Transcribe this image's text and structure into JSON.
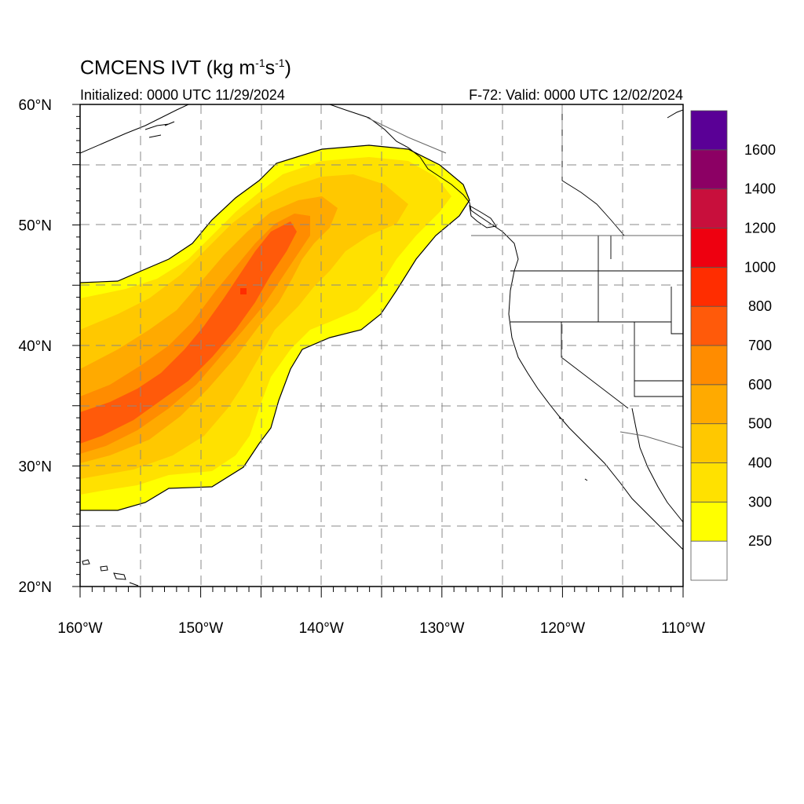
{
  "title": {
    "main": "CMCENS IVT (kg m",
    "sup1": "-1",
    "mid": "s",
    "sup2": "-1",
    "end": ")"
  },
  "subtitle": {
    "left": "Initialized: 0000 UTC 11/29/2024",
    "right": "F-72: Valid: 0000 UTC 12/02/2024"
  },
  "map": {
    "lon_range": [
      -160,
      -110
    ],
    "lat_range": [
      20,
      60
    ],
    "lon_ticks": [
      {
        "value": -160,
        "label": "160°W"
      },
      {
        "value": -150,
        "label": "150°W"
      },
      {
        "value": -140,
        "label": "140°W"
      },
      {
        "value": -130,
        "label": "130°W"
      },
      {
        "value": -120,
        "label": "120°W"
      },
      {
        "value": -110,
        "label": "110°W"
      }
    ],
    "lat_ticks": [
      {
        "value": 20,
        "label": "20°N"
      },
      {
        "value": 30,
        "label": "30°N"
      },
      {
        "value": 40,
        "label": "40°N"
      },
      {
        "value": 50,
        "label": "50°N"
      },
      {
        "value": 60,
        "label": "60°N"
      }
    ],
    "grid": "dashed every 5°",
    "background": "#ffffff",
    "coastline_color": "#000000"
  },
  "colorbar": {
    "labels": [
      "250",
      "300",
      "400",
      "500",
      "600",
      "700",
      "800",
      "1000",
      "1200",
      "1400",
      "1600"
    ],
    "colors": [
      "#ffffff",
      "#ffff00",
      "#ffe100",
      "#ffc800",
      "#ffaa00",
      "#ff8c00",
      "#ff5a0a",
      "#ff2d00",
      "#ee0010",
      "#c80f3c",
      "#8c0064",
      "#5a0096"
    ]
  },
  "ivt_plume": {
    "description_levels": [
      "250",
      "300",
      "400",
      "500",
      "600",
      "700"
    ]
  }
}
